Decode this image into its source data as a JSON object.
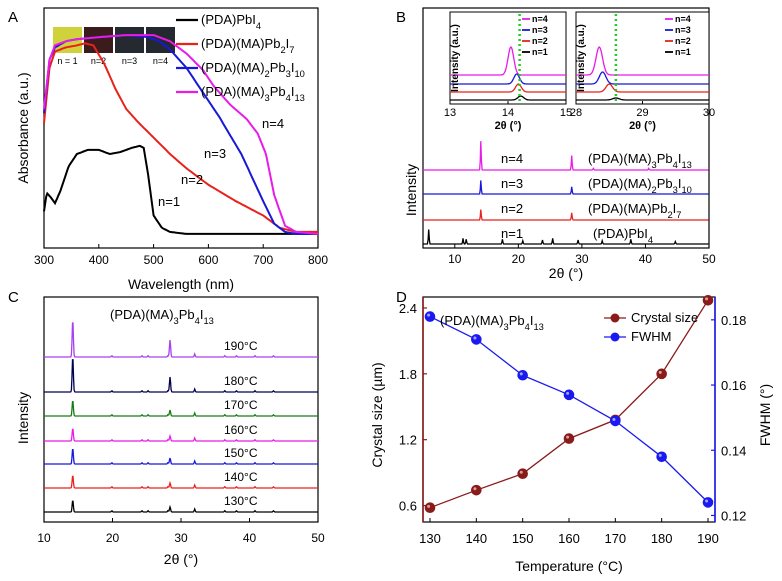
{
  "chart_data": [
    {
      "panel": "A",
      "type": "line",
      "xlabel": "Wavelength (nm)",
      "ylabel": "Absorbance (a.u.)",
      "xlim": [
        300,
        800
      ],
      "xticks": [
        "300",
        "400",
        "500",
        "600",
        "700",
        "800"
      ],
      "inset_photos": [
        {
          "label": "n = 1",
          "color": "#cfd23a"
        },
        {
          "label": "n=2",
          "color": "#3a1c1c"
        },
        {
          "label": "n=3",
          "color": "#252a30"
        },
        {
          "label": "n=4",
          "color": "#23292e"
        }
      ],
      "series": [
        {
          "name": "(PDA)PbI4",
          "tag": "n=1",
          "color": "#000000",
          "x": [
            300,
            305,
            312,
            320,
            330,
            345,
            360,
            380,
            400,
            420,
            440,
            460,
            475,
            482,
            490,
            500,
            515,
            530,
            560,
            600,
            700,
            800
          ],
          "y": [
            0.12,
            0.21,
            0.19,
            0.16,
            0.22,
            0.34,
            0.4,
            0.42,
            0.42,
            0.4,
            0.41,
            0.43,
            0.44,
            0.43,
            0.3,
            0.1,
            0.04,
            0.02,
            0.01,
            0.01,
            0.01,
            0.01
          ]
        },
        {
          "name": "(PDA)(MA)Pb2I7",
          "tag": "n=2",
          "color": "#e8221b",
          "x": [
            300,
            310,
            320,
            340,
            360,
            375,
            390,
            410,
            430,
            450,
            470,
            500,
            530,
            560,
            600,
            650,
            700,
            730,
            760,
            800
          ],
          "y": [
            0.55,
            0.82,
            0.9,
            0.92,
            0.93,
            0.94,
            0.93,
            0.84,
            0.72,
            0.62,
            0.56,
            0.48,
            0.4,
            0.33,
            0.25,
            0.17,
            0.1,
            0.04,
            0.02,
            0.02
          ]
        },
        {
          "name": "(PDA)(MA)2Pb3I10",
          "tag": "n=3",
          "color": "#1818d8",
          "x": [
            300,
            310,
            320,
            340,
            360,
            400,
            450,
            490,
            510,
            530,
            560,
            590,
            620,
            660,
            700,
            720,
            740,
            760,
            800
          ],
          "y": [
            0.6,
            0.86,
            0.92,
            0.95,
            0.96,
            0.97,
            0.98,
            0.97,
            0.95,
            0.91,
            0.82,
            0.7,
            0.58,
            0.4,
            0.17,
            0.06,
            0.02,
            0.01,
            0.01
          ]
        },
        {
          "name": "(PDA)(MA)3Pb4I13",
          "tag": "n=4",
          "color": "#e81ce8",
          "x": [
            300,
            310,
            320,
            340,
            360,
            400,
            450,
            500,
            530,
            560,
            590,
            610,
            640,
            670,
            690,
            705,
            720,
            740,
            760,
            800
          ],
          "y": [
            0.62,
            0.86,
            0.93,
            0.95,
            0.96,
            0.97,
            0.98,
            0.98,
            0.95,
            0.89,
            0.81,
            0.73,
            0.64,
            0.57,
            0.5,
            0.4,
            0.2,
            0.05,
            0.02,
            0.01
          ]
        }
      ]
    },
    {
      "panel": "B",
      "type": "line",
      "xlabel": "2θ (°)",
      "ylabel": "Intensity",
      "xlim": [
        5,
        50
      ],
      "xticks": [
        "10",
        "20",
        "30",
        "40",
        "50"
      ],
      "curve_labels": [
        "n=1",
        "n=2",
        "n=3",
        "n=4"
      ],
      "compound_labels": [
        "(PDA)PbI4",
        "(PDA)(MA)Pb2I7",
        "(PDA)(MA)2Pb3I10",
        "(PDA)(MA)3Pb4I13"
      ],
      "colors": [
        "#000000",
        "#e8221b",
        "#1818d8",
        "#e81ce8"
      ],
      "peaks": [
        {
          "curve": "n=1",
          "positions": [
            5.9,
            11.3,
            11.8,
            17.5,
            20.7,
            23.8,
            25.4,
            29.4,
            33.2,
            37.7,
            44.7
          ],
          "heights": [
            0.9,
            0.35,
            0.3,
            0.3,
            0.2,
            0.25,
            0.35,
            0.25,
            0.2,
            0.3,
            0.15
          ]
        },
        {
          "curve": "n=2",
          "positions": [
            14.1,
            28.4
          ],
          "heights": [
            0.65,
            0.45
          ]
        },
        {
          "curve": "n=3",
          "positions": [
            14.1,
            28.4
          ],
          "heights": [
            0.85,
            0.45
          ]
        },
        {
          "curve": "n=4",
          "positions": [
            14.1,
            28.4,
            31.8,
            40.5
          ],
          "heights": [
            1.8,
            0.9,
            0.1,
            0.1
          ]
        }
      ],
      "insets": [
        {
          "xlim": [
            13,
            15
          ],
          "xticks": [
            "13",
            "14",
            "15"
          ],
          "xlabel": "2θ (°)",
          "ylabel": "Intensity (a.u.)",
          "dashed_line_at": 14.2,
          "peak_centers": [
            14.05,
            14.15,
            14.18,
            14.22
          ],
          "legend": [
            "n=4",
            "n=3",
            "n=2",
            "n=1"
          ]
        },
        {
          "xlim": [
            28,
            30
          ],
          "xticks": [
            "28",
            "29",
            "30"
          ],
          "xlabel": "2θ (°)",
          "ylabel": "Intensity (a.u.)",
          "dashed_line_at": 28.6,
          "peak_centers": [
            28.35,
            28.4,
            28.5,
            28.6
          ],
          "legend": [
            "n=4",
            "n=3",
            "n=2",
            "n=1"
          ]
        }
      ]
    },
    {
      "panel": "C",
      "type": "line",
      "title": "(PDA)(MA)3Pb4I13",
      "xlabel": "2θ (°)",
      "ylabel": "Intensity",
      "xlim": [
        10,
        50
      ],
      "xticks": [
        "10",
        "20",
        "30",
        "40",
        "50"
      ],
      "series": [
        {
          "name": "130°C",
          "color": "#000000",
          "peak_heights": [
            12,
            5
          ]
        },
        {
          "name": "140°C",
          "color": "#e8221b",
          "peak_heights": [
            13,
            5
          ]
        },
        {
          "name": "150°C",
          "color": "#1818d8",
          "peak_heights": [
            16,
            6
          ]
        },
        {
          "name": "160°C",
          "color": "#e81ce8",
          "peak_heights": [
            13,
            5
          ]
        },
        {
          "name": "170°C",
          "color": "#1a7a1a",
          "peak_heights": [
            16,
            6
          ]
        },
        {
          "name": "180°C",
          "color": "#000050",
          "peak_heights": [
            36,
            15
          ]
        },
        {
          "name": "190°C",
          "color": "#a640f0",
          "peak_heights": [
            38,
            17
          ]
        }
      ],
      "peak_positions": [
        14.2,
        28.4
      ]
    },
    {
      "panel": "D",
      "type": "line",
      "title": "(PDA)(MA)3Pb4I13",
      "xlabel": "Temperature (°C)",
      "ylabel_left": "Crystal  size (µm)",
      "ylabel_right": "FWHM (°)",
      "x": [
        130,
        140,
        150,
        160,
        170,
        180,
        190
      ],
      "xticks": [
        "130",
        "140",
        "150",
        "160",
        "170",
        "180",
        "190"
      ],
      "ylim_left": [
        0.45,
        2.5
      ],
      "yticks_left": [
        "0.6",
        "1.2",
        "1.8",
        "2.4"
      ],
      "ylim_right": [
        0.118,
        0.187
      ],
      "yticks_right": [
        "0.12",
        "0.14",
        "0.16",
        "0.18"
      ],
      "series": [
        {
          "name": "Crystal size",
          "axis": "left",
          "color": "#8b1a1a",
          "values": [
            0.58,
            0.74,
            0.89,
            1.21,
            1.38,
            1.8,
            2.47
          ]
        },
        {
          "name": "FWHM",
          "axis": "right",
          "color": "#1a1af0",
          "values": [
            0.181,
            0.174,
            0.163,
            0.157,
            0.149,
            0.138,
            0.124
          ]
        }
      ]
    }
  ],
  "panel_labels": [
    "A",
    "B",
    "C",
    "D"
  ]
}
